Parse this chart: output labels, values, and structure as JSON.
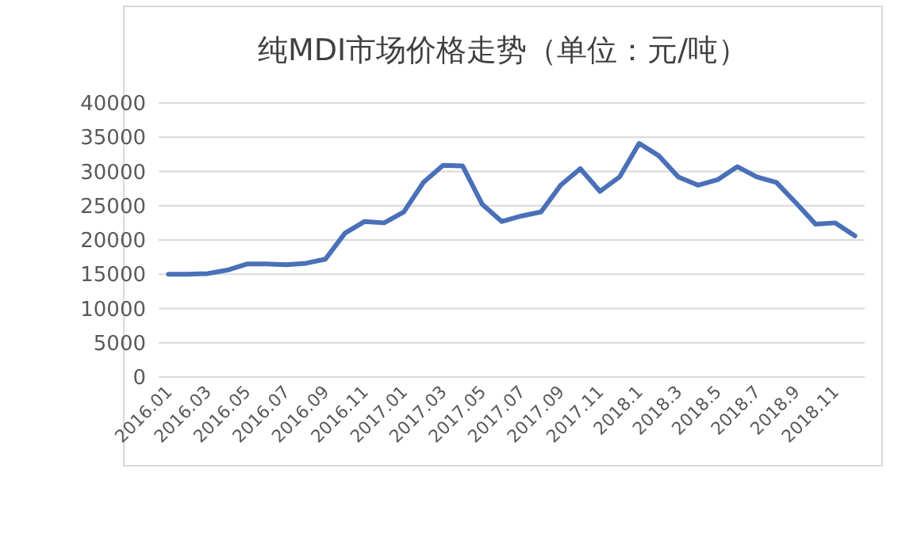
{
  "chart_data": {
    "type": "line",
    "title": "纯MDI市场价格走势（单位：元/吨）",
    "categories": [
      "2016.01",
      null,
      "2016.03",
      null,
      "2016.05",
      null,
      "2016.07",
      null,
      "2016.09",
      null,
      "2016.11",
      null,
      "2017.01",
      null,
      "2017.03",
      null,
      "2017.05",
      null,
      "2017.07",
      null,
      "2017.09",
      null,
      "2017.11",
      null,
      "2018.1",
      null,
      "2018.3",
      null,
      "2018.5",
      null,
      "2018.7",
      null,
      "2018.9",
      null,
      "2018.11",
      null
    ],
    "series": [
      {
        "color": "#4a70b8",
        "values": [
          15000,
          15000,
          15100,
          15600,
          16500,
          16500,
          16400,
          16600,
          17200,
          21000,
          22700,
          22500,
          24100,
          28400,
          30900,
          30800,
          25200,
          22700,
          23500,
          24100,
          28000,
          30400,
          27100,
          29200,
          34100,
          32300,
          29200,
          28000,
          28800,
          30700,
          29200,
          28400,
          25400,
          22300,
          22500,
          20600
        ]
      }
    ],
    "ylim": [
      0,
      40000
    ],
    "yticks": [
      0,
      5000,
      10000,
      15000,
      20000,
      25000,
      30000,
      35000,
      40000
    ],
    "grid": "y"
  }
}
